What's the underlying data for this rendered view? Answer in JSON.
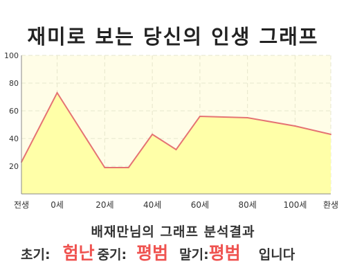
{
  "title": "재미로 보는 당신의 인생 그래프",
  "colors": {
    "plot_bg": "#fffde7",
    "area_fill": "#ffffa8",
    "line": "#e57373",
    "highlight": "#ef5350",
    "grid": "#e6e6cc"
  },
  "chart_data": {
    "type": "area",
    "x": [
      -15,
      0,
      20,
      30,
      40,
      50,
      60,
      80,
      100,
      115
    ],
    "values": [
      23,
      73,
      19,
      19,
      43,
      32,
      56,
      55,
      49,
      43
    ],
    "xticks": [
      {
        "x": -15,
        "label": "전생"
      },
      {
        "x": 0,
        "label": "0세"
      },
      {
        "x": 20,
        "label": "20세"
      },
      {
        "x": 40,
        "label": "40세"
      },
      {
        "x": 60,
        "label": "60세"
      },
      {
        "x": 80,
        "label": "80세"
      },
      {
        "x": 100,
        "label": "100세"
      },
      {
        "x": 115,
        "label": "환생"
      }
    ],
    "yticks": [
      20,
      40,
      60,
      80,
      100
    ],
    "ylim": [
      0,
      100
    ],
    "xlim": [
      -15,
      115
    ],
    "grid": true
  },
  "result": {
    "title": "배재만님의 그래프 분석결과",
    "early_label": "초기:",
    "early_value": "험난",
    "mid_label": "중기:",
    "mid_value": "평범",
    "late_label": "말기:",
    "late_value": "평범",
    "suffix": "입니다"
  }
}
